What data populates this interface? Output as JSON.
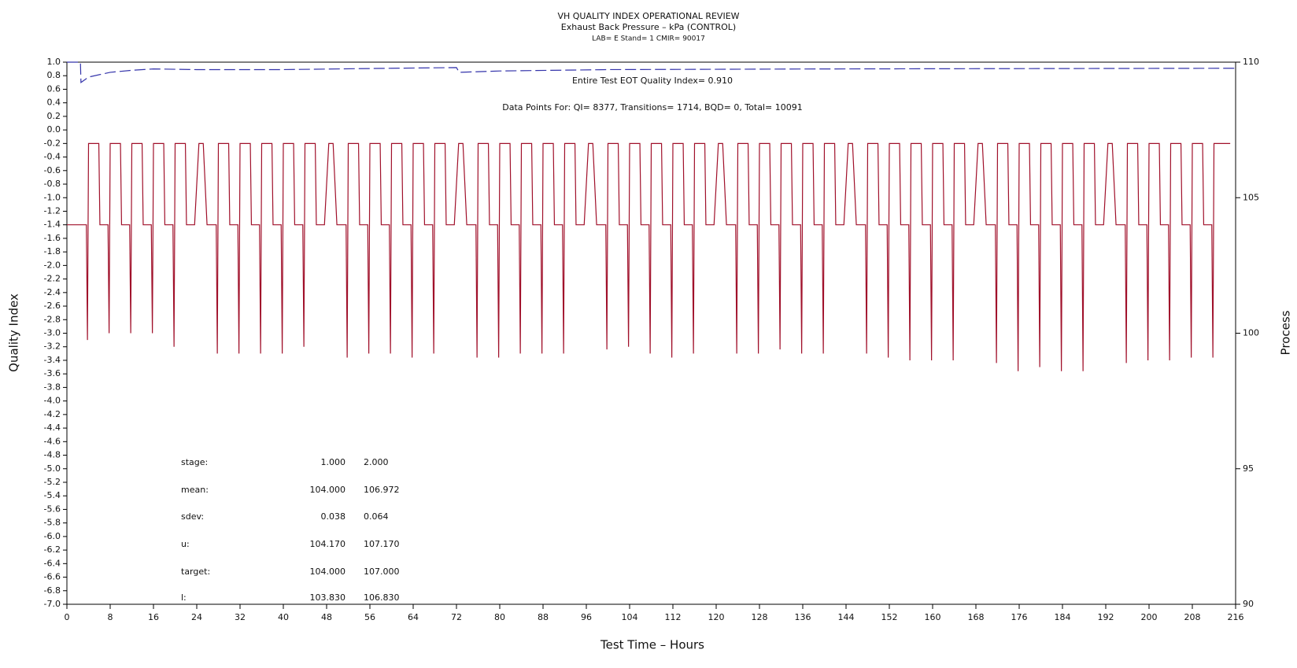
{
  "chart_data": {
    "type": "line",
    "title": "VH QUALITY INDEX OPERATIONAL REVIEW",
    "subtitle": "Exhaust Back Pressure – kPa (CONTROL)",
    "subtitle2": "LAB= E Stand= 1 CMIR= 90017",
    "annotations": [
      "Entire Test EOT Quality Index=   0.910",
      "Data Points For: QI=  8377, Transitions=  1714, BQD=    0, Total= 10091"
    ],
    "x_label": "Test Time – Hours",
    "y_label": "Quality Index",
    "y2_label": "Process",
    "xlim": [
      0,
      216
    ],
    "xticks": [
      0,
      8,
      16,
      24,
      32,
      40,
      48,
      56,
      64,
      72,
      80,
      88,
      96,
      104,
      112,
      120,
      128,
      136,
      144,
      152,
      160,
      168,
      176,
      184,
      192,
      200,
      208,
      216
    ],
    "ylim": [
      -7,
      1
    ],
    "yticks": [
      {
        "value": -7,
        "label": "-7.0"
      },
      -6.8,
      -6.6,
      -6.4,
      -6.2,
      {
        "value": -6,
        "label": "-6.0"
      },
      -5.8,
      -5.6,
      -5.4,
      -5.2,
      {
        "value": -5,
        "label": "-5.0"
      },
      -4.8,
      -4.6,
      -4.4,
      -4.2,
      {
        "value": -4,
        "label": "-4.0"
      },
      -3.8,
      -3.6,
      -3.4,
      -3.2,
      {
        "value": -3,
        "label": "-3.0"
      },
      -2.8,
      -2.6,
      -2.4,
      -2.2,
      {
        "value": -2,
        "label": "-2.0"
      },
      -1.8,
      -1.6,
      -1.4,
      -1.2,
      {
        "value": -1,
        "label": "-1.0"
      },
      -0.8,
      -0.6,
      -0.4,
      -0.2,
      {
        "value": 0,
        "label": "0.0"
      },
      0.2,
      0.4,
      0.6,
      0.8,
      {
        "value": 1,
        "label": "1.0"
      }
    ],
    "y2lim": [
      90,
      110
    ],
    "y2ticks": [
      90,
      95,
      100,
      105,
      110
    ],
    "series": [
      {
        "color": "#3333aa",
        "dashed": true,
        "axis": "y",
        "x": [
          0,
          2.5,
          2.6,
          4,
          8,
          12,
          16,
          24,
          40,
          60,
          72,
          72.5,
          80,
          100,
          140,
          216
        ],
        "values": [
          1.0,
          1.0,
          0.7,
          0.78,
          0.85,
          0.88,
          0.9,
          0.89,
          0.89,
          0.91,
          0.92,
          0.85,
          0.87,
          0.89,
          0.9,
          0.91
        ]
      },
      {
        "color": "#a0102a",
        "dashed": false,
        "axis": "y2",
        "x": [
          0,
          2.1,
          3.6,
          3.8,
          4,
          5.9,
          6.1,
          7.6,
          7.8,
          8,
          9.9,
          10.1,
          11.6,
          11.8,
          12,
          13.9,
          14.1,
          15.6,
          15.8,
          16,
          17.9,
          18.1,
          19.6,
          19.8,
          20,
          21.9,
          22.1,
          23.6,
          24.4,
          25.2,
          25.9,
          26.1,
          27.6,
          27.8,
          28,
          29.9,
          30.1,
          31.6,
          31.8,
          32,
          33.9,
          34.1,
          35.6,
          35.8,
          36,
          37.9,
          38.1,
          39.6,
          39.8,
          40,
          41.9,
          42.1,
          43.6,
          43.8,
          44,
          45.9,
          46.1,
          47.6,
          48.4,
          49.2,
          49.9,
          50.1,
          51.6,
          51.8,
          52,
          53.9,
          54.1,
          55.6,
          55.8,
          56,
          57.9,
          58.1,
          59.6,
          59.8,
          60,
          61.9,
          62.1,
          63.6,
          63.8,
          64,
          65.9,
          66.1,
          67.6,
          67.8,
          68,
          69.9,
          70.1,
          71.6,
          72.4,
          73.2,
          73.9,
          74.1,
          75.6,
          75.8,
          76,
          77.9,
          78.1,
          79.6,
          79.8,
          80,
          81.9,
          82.1,
          83.6,
          83.8,
          84,
          85.9,
          86.1,
          87.6,
          87.8,
          88,
          89.9,
          90.1,
          91.6,
          91.8,
          92,
          93.9,
          94.1,
          95.6,
          96.4,
          97.2,
          97.9,
          98.1,
          99.6,
          99.8,
          100,
          101.9,
          102.1,
          103.6,
          103.8,
          104,
          105.9,
          106.1,
          107.6,
          107.8,
          108,
          109.9,
          110.1,
          111.6,
          111.8,
          112,
          113.9,
          114.1,
          115.6,
          115.8,
          116,
          117.9,
          118.1,
          119.6,
          120.4,
          121.2,
          121.9,
          122.1,
          123.6,
          123.8,
          124,
          125.9,
          126.1,
          127.6,
          127.8,
          128,
          129.9,
          130.1,
          131.6,
          131.8,
          132,
          133.9,
          134.1,
          135.6,
          135.8,
          136,
          137.9,
          138.1,
          139.6,
          139.8,
          140,
          141.9,
          142.1,
          143.6,
          144.4,
          145.2,
          145.9,
          146.1,
          147.6,
          147.8,
          148,
          149.9,
          150.1,
          151.6,
          151.8,
          152,
          153.9,
          154.1,
          155.6,
          155.8,
          156,
          157.9,
          158.1,
          159.6,
          159.8,
          160,
          161.9,
          162.1,
          163.6,
          163.8,
          164,
          165.9,
          166.1,
          167.6,
          168.4,
          169.2,
          169.9,
          170.1,
          171.6,
          171.8,
          172,
          173.9,
          174.1,
          175.6,
          175.8,
          176,
          177.9,
          178.1,
          179.6,
          179.8,
          180,
          181.9,
          182.1,
          183.6,
          183.8,
          184,
          185.9,
          186.1,
          187.6,
          187.8,
          188,
          189.9,
          190.1,
          191.6,
          192.4,
          193.2,
          193.9,
          194.1,
          195.6,
          195.8,
          196,
          197.9,
          198.1,
          199.6,
          199.8,
          200,
          201.9,
          202.1,
          203.6,
          203.8,
          204,
          205.9,
          206.1,
          207.6,
          207.8,
          208,
          209.9,
          210.1,
          211.6,
          211.8,
          212,
          215
        ],
        "values": [
          104,
          104,
          104,
          99.75,
          107,
          107,
          104,
          104,
          100,
          107,
          107,
          104,
          104,
          100,
          107,
          107,
          104,
          104,
          100,
          107,
          107,
          104,
          104,
          99.5,
          107,
          107,
          104,
          104,
          107,
          107,
          104,
          104,
          104,
          99.25,
          107,
          107,
          104,
          104,
          99.25,
          107,
          107,
          104,
          104,
          99.25,
          107,
          107,
          104,
          104,
          99.25,
          107,
          107,
          104,
          104,
          99.5,
          107,
          107,
          104,
          104,
          107,
          107,
          104,
          104,
          104,
          99.1,
          107,
          107,
          104,
          104,
          99.25,
          107,
          107,
          104,
          104,
          99.25,
          107,
          107,
          104,
          104,
          99.1,
          107,
          107,
          104,
          104,
          99.25,
          107,
          107,
          104,
          104,
          107,
          107,
          104,
          104,
          104,
          99.1,
          107,
          107,
          104,
          104,
          99.1,
          107,
          107,
          104,
          104,
          99.25,
          107,
          107,
          104,
          104,
          99.25,
          107,
          107,
          104,
          104,
          99.25,
          107,
          107,
          104,
          104,
          107,
          107,
          104,
          104,
          104,
          99.4,
          107,
          107,
          104,
          104,
          99.5,
          107,
          107,
          104,
          104,
          99.25,
          107,
          107,
          104,
          104,
          99.1,
          107,
          107,
          104,
          104,
          99.25,
          107,
          107,
          104,
          104,
          107,
          107,
          104,
          104,
          104,
          99.25,
          107,
          107,
          104,
          104,
          99.25,
          107,
          107,
          104,
          104,
          99.4,
          107,
          107,
          104,
          104,
          99.25,
          107,
          107,
          104,
          104,
          99.25,
          107,
          107,
          104,
          104,
          107,
          107,
          104,
          104,
          104,
          99.25,
          107,
          107,
          104,
          104,
          99.1,
          107,
          107,
          104,
          104,
          99,
          107,
          107,
          104,
          104,
          99,
          107,
          107,
          104,
          104,
          99,
          107,
          107,
          104,
          104,
          107,
          107,
          104,
          104,
          104,
          98.9,
          107,
          107,
          104,
          104,
          98.6,
          107,
          107,
          104,
          104,
          98.75,
          107,
          107,
          104,
          104,
          98.6,
          107,
          107,
          104,
          104,
          98.6,
          107,
          107,
          104,
          104,
          107,
          107,
          104,
          104,
          104,
          98.9,
          107,
          107,
          104,
          104,
          99,
          107,
          107,
          104,
          104,
          99,
          107,
          107,
          104,
          104,
          99.1,
          107,
          107,
          104,
          104,
          99.1,
          107,
          107
        ]
      }
    ],
    "stats": {
      "labels": [
        "stage:",
        "mean:",
        "sdev:",
        "u:",
        "target:",
        "l:"
      ],
      "columns": [
        [
          "1.000",
          "104.000",
          "0.038",
          "104.170",
          "104.000",
          "103.830"
        ],
        [
          "2.000",
          "106.972",
          "0.064",
          "107.170",
          "107.000",
          "106.830"
        ]
      ]
    }
  }
}
